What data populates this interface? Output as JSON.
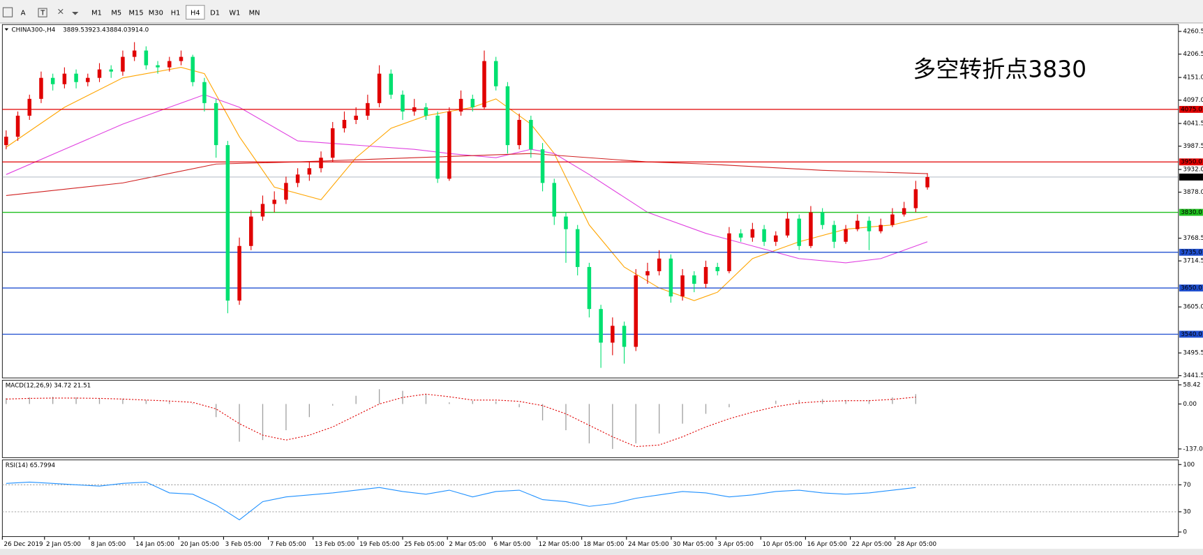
{
  "toolbar": {
    "timeframes": [
      "M1",
      "M5",
      "M15",
      "M30",
      "H1",
      "H4",
      "D1",
      "W1",
      "MN"
    ],
    "active": 5
  },
  "chart": {
    "symbol": "CHINA300-,H4",
    "ohlc": [
      "3889.5",
      "3923.4",
      "3884.0",
      "3914.0"
    ],
    "annotation": "多空转折点3830",
    "ylim": [
      3441.5,
      4260.5
    ],
    "price_axis": [
      {
        "value": 4260.5,
        "label": "4260.5"
      },
      {
        "value": 4206.5,
        "label": "4206.5"
      },
      {
        "value": 4151,
        "label": "4151.0"
      },
      {
        "value": 4097,
        "label": "4097.0"
      },
      {
        "value": 4041.5,
        "label": "4041.5"
      },
      {
        "value": 3987.5,
        "label": "3987.5"
      },
      {
        "value": 3932,
        "label": "3932.0"
      },
      {
        "value": 3878,
        "label": "3878.0"
      },
      {
        "value": 3768.5,
        "label": "3768.5"
      },
      {
        "value": 3714.5,
        "label": "3714.5"
      },
      {
        "value": 3605,
        "label": "3605.0"
      },
      {
        "value": 3495.5,
        "label": "3495.5"
      },
      {
        "value": 3441.5,
        "label": "3441.5"
      }
    ],
    "levels": [
      {
        "value": 4075,
        "label": "4075.0",
        "color": "#e00000"
      },
      {
        "value": 3950,
        "label": "3950.0",
        "color": "#e00000"
      },
      {
        "value": 3914,
        "label": "3914.0",
        "color": "#000000"
      },
      {
        "value": 3830,
        "label": "3830.0",
        "color": "#1fc01f"
      },
      {
        "value": 3735,
        "label": "3735.0",
        "color": "#2050d0"
      },
      {
        "value": 3650,
        "label": "3650.0",
        "color": "#2050d0"
      },
      {
        "value": 3540,
        "label": "3540.0",
        "color": "#2050d0"
      }
    ],
    "up_color": "#e00000",
    "down_color": "#00e070",
    "candles": [
      [
        3990,
        4025,
        3980,
        4010
      ],
      [
        4010,
        4070,
        4000,
        4060
      ],
      [
        4060,
        4110,
        4050,
        4100
      ],
      [
        4100,
        4165,
        4090,
        4150
      ],
      [
        4150,
        4160,
        4120,
        4135
      ],
      [
        4135,
        4175,
        4125,
        4160
      ],
      [
        4160,
        4170,
        4125,
        4140
      ],
      [
        4140,
        4160,
        4130,
        4150
      ],
      [
        4150,
        4185,
        4140,
        4170
      ],
      [
        4170,
        4180,
        4150,
        4165
      ],
      [
        4165,
        4215,
        4155,
        4200
      ],
      [
        4200,
        4235,
        4190,
        4215
      ],
      [
        4215,
        4225,
        4170,
        4180
      ],
      [
        4180,
        4190,
        4160,
        4175
      ],
      [
        4175,
        4200,
        4165,
        4190
      ],
      [
        4190,
        4215,
        4180,
        4200
      ],
      [
        4200,
        4205,
        4130,
        4140
      ],
      [
        4140,
        4150,
        4070,
        4090
      ],
      [
        4090,
        4100,
        3960,
        3990
      ],
      [
        3990,
        4000,
        3590,
        3620
      ],
      [
        3620,
        3770,
        3610,
        3750
      ],
      [
        3750,
        3835,
        3740,
        3820
      ],
      [
        3820,
        3870,
        3810,
        3850
      ],
      [
        3850,
        3880,
        3830,
        3860
      ],
      [
        3860,
        3915,
        3850,
        3900
      ],
      [
        3900,
        3935,
        3890,
        3920
      ],
      [
        3920,
        3950,
        3905,
        3935
      ],
      [
        3935,
        3975,
        3925,
        3960
      ],
      [
        3960,
        4045,
        3950,
        4030
      ],
      [
        4030,
        4070,
        4020,
        4050
      ],
      [
        4050,
        4080,
        4040,
        4060
      ],
      [
        4060,
        4110,
        4050,
        4090
      ],
      [
        4090,
        4180,
        4080,
        4160
      ],
      [
        4160,
        4170,
        4100,
        4110
      ],
      [
        4110,
        4120,
        4050,
        4070
      ],
      [
        4070,
        4100,
        4060,
        4080
      ],
      [
        4080,
        4090,
        4050,
        4060
      ],
      [
        4060,
        4070,
        3900,
        3910
      ],
      [
        3910,
        4080,
        3905,
        4070
      ],
      [
        4070,
        4120,
        4060,
        4100
      ],
      [
        4100,
        4110,
        4070,
        4080
      ],
      [
        4080,
        4215,
        4075,
        4190
      ],
      [
        4190,
        4200,
        4120,
        4130
      ],
      [
        4130,
        4140,
        3970,
        3990
      ],
      [
        3990,
        4065,
        3980,
        4050
      ],
      [
        4050,
        4060,
        3960,
        3980
      ],
      [
        3980,
        3995,
        3880,
        3900
      ],
      [
        3900,
        3910,
        3800,
        3820
      ],
      [
        3820,
        3830,
        3710,
        3790
      ],
      [
        3790,
        3800,
        3680,
        3700
      ],
      [
        3700,
        3710,
        3580,
        3600
      ],
      [
        3600,
        3610,
        3460,
        3520
      ],
      [
        3520,
        3580,
        3490,
        3560
      ],
      [
        3560,
        3570,
        3470,
        3510
      ],
      [
        3510,
        3695,
        3500,
        3680
      ],
      [
        3680,
        3710,
        3660,
        3690
      ],
      [
        3690,
        3740,
        3680,
        3720
      ],
      [
        3720,
        3730,
        3615,
        3630
      ],
      [
        3630,
        3695,
        3620,
        3680
      ],
      [
        3680,
        3690,
        3640,
        3660
      ],
      [
        3660,
        3715,
        3650,
        3700
      ],
      [
        3700,
        3710,
        3680,
        3690
      ],
      [
        3690,
        3795,
        3685,
        3780
      ],
      [
        3780,
        3790,
        3760,
        3770
      ],
      [
        3770,
        3805,
        3760,
        3790
      ],
      [
        3790,
        3800,
        3750,
        3760
      ],
      [
        3760,
        3785,
        3750,
        3775
      ],
      [
        3775,
        3830,
        3770,
        3815
      ],
      [
        3815,
        3825,
        3740,
        3750
      ],
      [
        3750,
        3845,
        3745,
        3830
      ],
      [
        3830,
        3840,
        3790,
        3800
      ],
      [
        3800,
        3810,
        3745,
        3760
      ],
      [
        3760,
        3800,
        3755,
        3790
      ],
      [
        3790,
        3825,
        3785,
        3810
      ],
      [
        3810,
        3820,
        3740,
        3785
      ],
      [
        3785,
        3815,
        3780,
        3800
      ],
      [
        3800,
        3840,
        3795,
        3825
      ],
      [
        3825,
        3855,
        3820,
        3840
      ],
      [
        3840,
        3905,
        3830,
        3885
      ],
      [
        3889.5,
        3923.4,
        3884.0,
        3914.0
      ]
    ],
    "mas": [
      {
        "color": "#ffa500",
        "points": [
          [
            0,
            3985
          ],
          [
            5,
            4080
          ],
          [
            10,
            4150
          ],
          [
            15,
            4175
          ],
          [
            17,
            4160
          ],
          [
            20,
            4010
          ],
          [
            23,
            3890
          ],
          [
            27,
            3860
          ],
          [
            30,
            3960
          ],
          [
            33,
            4030
          ],
          [
            36,
            4060
          ],
          [
            40,
            4080
          ],
          [
            42,
            4100
          ],
          [
            45,
            4040
          ],
          [
            47,
            3970
          ],
          [
            50,
            3800
          ],
          [
            53,
            3700
          ],
          [
            56,
            3650
          ],
          [
            59,
            3620
          ],
          [
            61,
            3640
          ],
          [
            64,
            3720
          ],
          [
            68,
            3760
          ],
          [
            72,
            3790
          ],
          [
            76,
            3800
          ],
          [
            79,
            3820
          ]
        ]
      },
      {
        "color": "#e040e0",
        "points": [
          [
            0,
            3920
          ],
          [
            5,
            3980
          ],
          [
            10,
            4040
          ],
          [
            15,
            4090
          ],
          [
            17,
            4110
          ],
          [
            20,
            4080
          ],
          [
            25,
            4000
          ],
          [
            30,
            3990
          ],
          [
            35,
            3980
          ],
          [
            38,
            3970
          ],
          [
            42,
            3960
          ],
          [
            45,
            3980
          ],
          [
            47,
            3970
          ],
          [
            50,
            3920
          ],
          [
            55,
            3830
          ],
          [
            60,
            3780
          ],
          [
            64,
            3750
          ],
          [
            68,
            3720
          ],
          [
            72,
            3710
          ],
          [
            75,
            3720
          ],
          [
            79,
            3760
          ]
        ]
      },
      {
        "color": "#d02020",
        "points": [
          [
            0,
            3870
          ],
          [
            10,
            3900
          ],
          [
            18,
            3945
          ],
          [
            25,
            3950
          ],
          [
            35,
            3960
          ],
          [
            45,
            3970
          ],
          [
            55,
            3950
          ],
          [
            60,
            3945
          ],
          [
            70,
            3930
          ],
          [
            79,
            3922
          ]
        ]
      }
    ],
    "dates": [
      "26 Dec 2019",
      "2 Jan 05:00",
      "8 Jan 05:00",
      "14 Jan 05:00",
      "20 Jan 05:00",
      "3 Feb 05:00",
      "7 Feb 05:00",
      "13 Feb 05:00",
      "19 Feb 05:00",
      "25 Feb 05:00",
      "2 Mar 05:00",
      "6 Mar 05:00",
      "12 Mar 05:00",
      "18 Mar 05:00",
      "24 Mar 05:00",
      "30 Mar 05:00",
      "3 Apr 05:00",
      "10 Apr 05:00",
      "16 Apr 05:00",
      "22 Apr 05:00",
      "28 Apr 05:00"
    ]
  },
  "macd": {
    "label": "MACD(12,26,9) 34.72 21.51",
    "axis": [
      {
        "value": 58.42,
        "label": "58.42"
      },
      {
        "value": 0,
        "label": "0.00"
      },
      {
        "value": -137.09,
        "label": "-137.09"
      }
    ],
    "histogram": [
      18,
      20,
      22,
      20,
      18,
      16,
      12,
      8,
      2,
      -40,
      -115,
      -110,
      -80,
      -40,
      -5,
      25,
      45,
      40,
      30,
      5,
      10,
      8,
      -10,
      -50,
      -80,
      -120,
      -137,
      -120,
      -90,
      -60,
      -30,
      -10,
      0,
      10,
      12,
      15,
      12,
      12,
      20,
      30
    ],
    "signal": [
      15,
      17,
      18,
      18,
      17,
      15,
      12,
      9,
      5,
      -15,
      -60,
      -95,
      -110,
      -95,
      -70,
      -35,
      0,
      20,
      30,
      22,
      12,
      12,
      8,
      -5,
      -30,
      -65,
      -100,
      -130,
      -125,
      -100,
      -70,
      -45,
      -25,
      -8,
      3,
      8,
      10,
      10,
      14,
      21
    ]
  },
  "rsi": {
    "label": "RSI(14) 65.7994",
    "axis": [
      100,
      70,
      30,
      0
    ],
    "levels": [
      70,
      30
    ],
    "values": [
      72,
      74,
      72,
      70,
      68,
      72,
      74,
      58,
      56,
      40,
      18,
      45,
      52,
      55,
      58,
      62,
      66,
      60,
      56,
      62,
      52,
      60,
      62,
      48,
      45,
      38,
      42,
      50,
      55,
      60,
      58,
      52,
      55,
      60,
      62,
      58,
      56,
      58,
      62,
      66
    ]
  }
}
